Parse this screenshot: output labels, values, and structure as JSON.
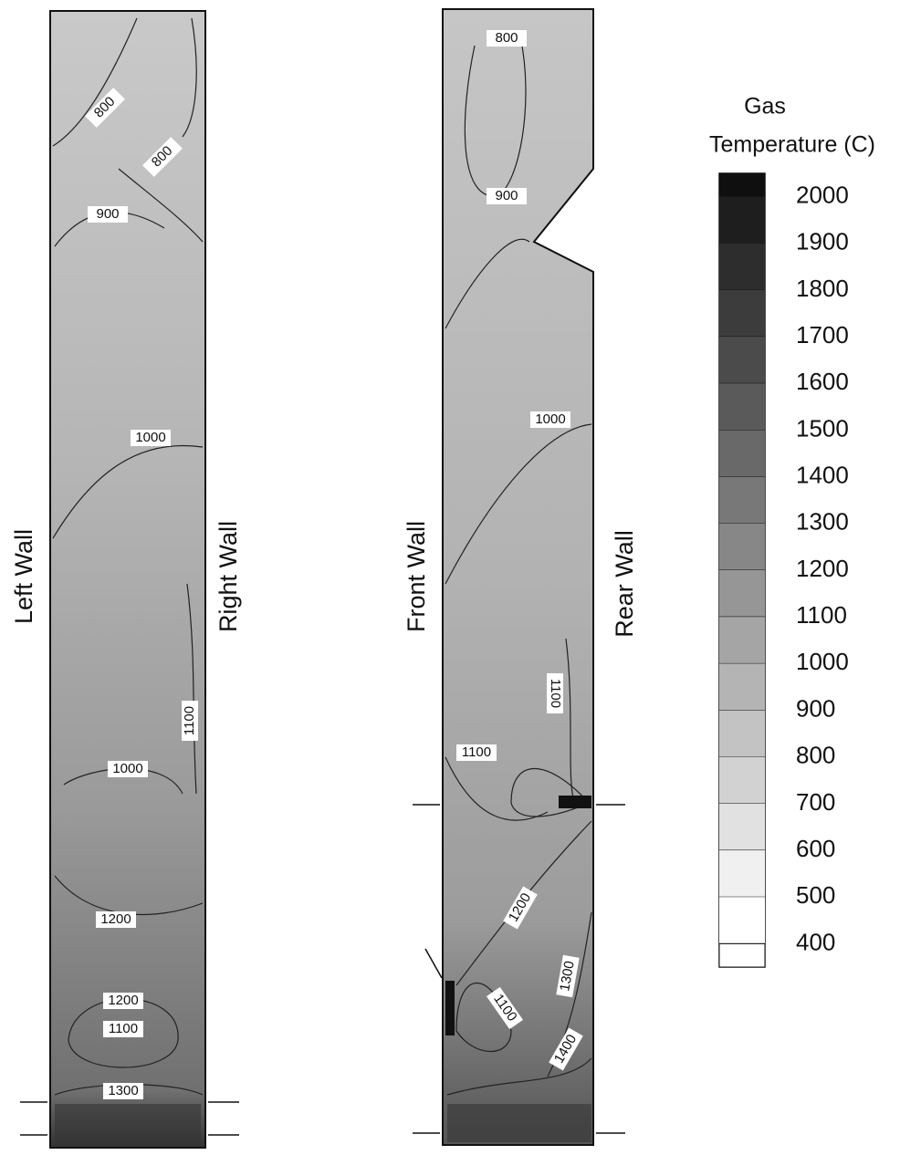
{
  "chart_data": {
    "type": "contour",
    "panels": [
      {
        "left_label": "Left Wall",
        "right_label": "Right Wall",
        "contour_labels": [
          800,
          800,
          900,
          1000,
          1100,
          1000,
          1200,
          1200,
          1100,
          1300
        ]
      },
      {
        "left_label": "Front Wall",
        "right_label": "Rear Wall",
        "contour_labels": [
          800,
          900,
          1000,
          1100,
          1100,
          1200,
          1100,
          1300,
          1400
        ]
      }
    ],
    "colorbar": {
      "title": [
        "Gas",
        "Temperature (C)"
      ],
      "ticks": [
        2000,
        1900,
        1800,
        1700,
        1600,
        1500,
        1400,
        1300,
        1200,
        1100,
        1000,
        900,
        800,
        700,
        600,
        500,
        400
      ],
      "lim": [
        350,
        2050
      ]
    }
  }
}
